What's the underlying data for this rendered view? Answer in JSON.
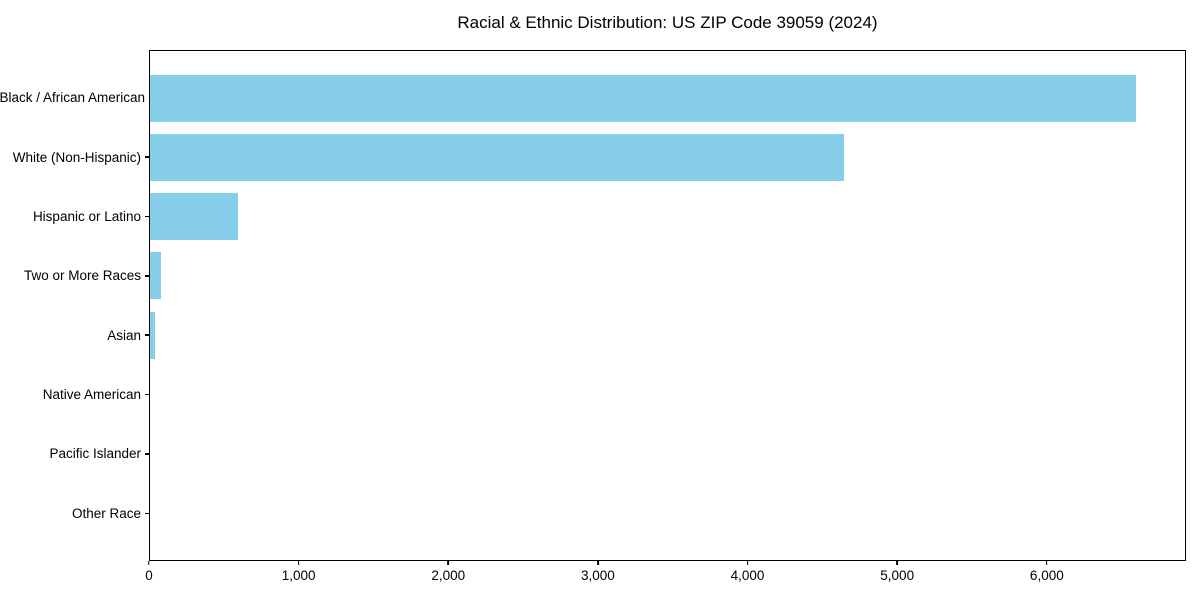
{
  "title": "Racial & Ethnic Distribution: US ZIP Code 39059 (2024)",
  "colors": {
    "bar": "#87CEEB",
    "frame": "#000000",
    "background": "#FFFFFF",
    "text": "#000000"
  },
  "chart_data": {
    "type": "bar",
    "orientation": "horizontal",
    "title": "Racial & Ethnic Distribution: US ZIP Code 39059 (2024)",
    "xlabel": "",
    "ylabel": "",
    "categories": [
      "Black / African American",
      "White (Non-Hispanic)",
      "Hispanic or Latino",
      "Two or More Races",
      "Asian",
      "Native American",
      "Pacific Islander",
      "Other Race"
    ],
    "values": [
      6600,
      4650,
      590,
      75,
      35,
      0,
      0,
      0
    ],
    "xlim": [
      0,
      6930
    ],
    "x_ticks": [
      0,
      1000,
      2000,
      3000,
      4000,
      5000,
      6000
    ],
    "x_tick_labels": [
      "0",
      "1,000",
      "2,000",
      "3,000",
      "4,000",
      "5,000",
      "6,000"
    ],
    "bar_color": "#87CEEB",
    "grid": false,
    "legend": null
  }
}
